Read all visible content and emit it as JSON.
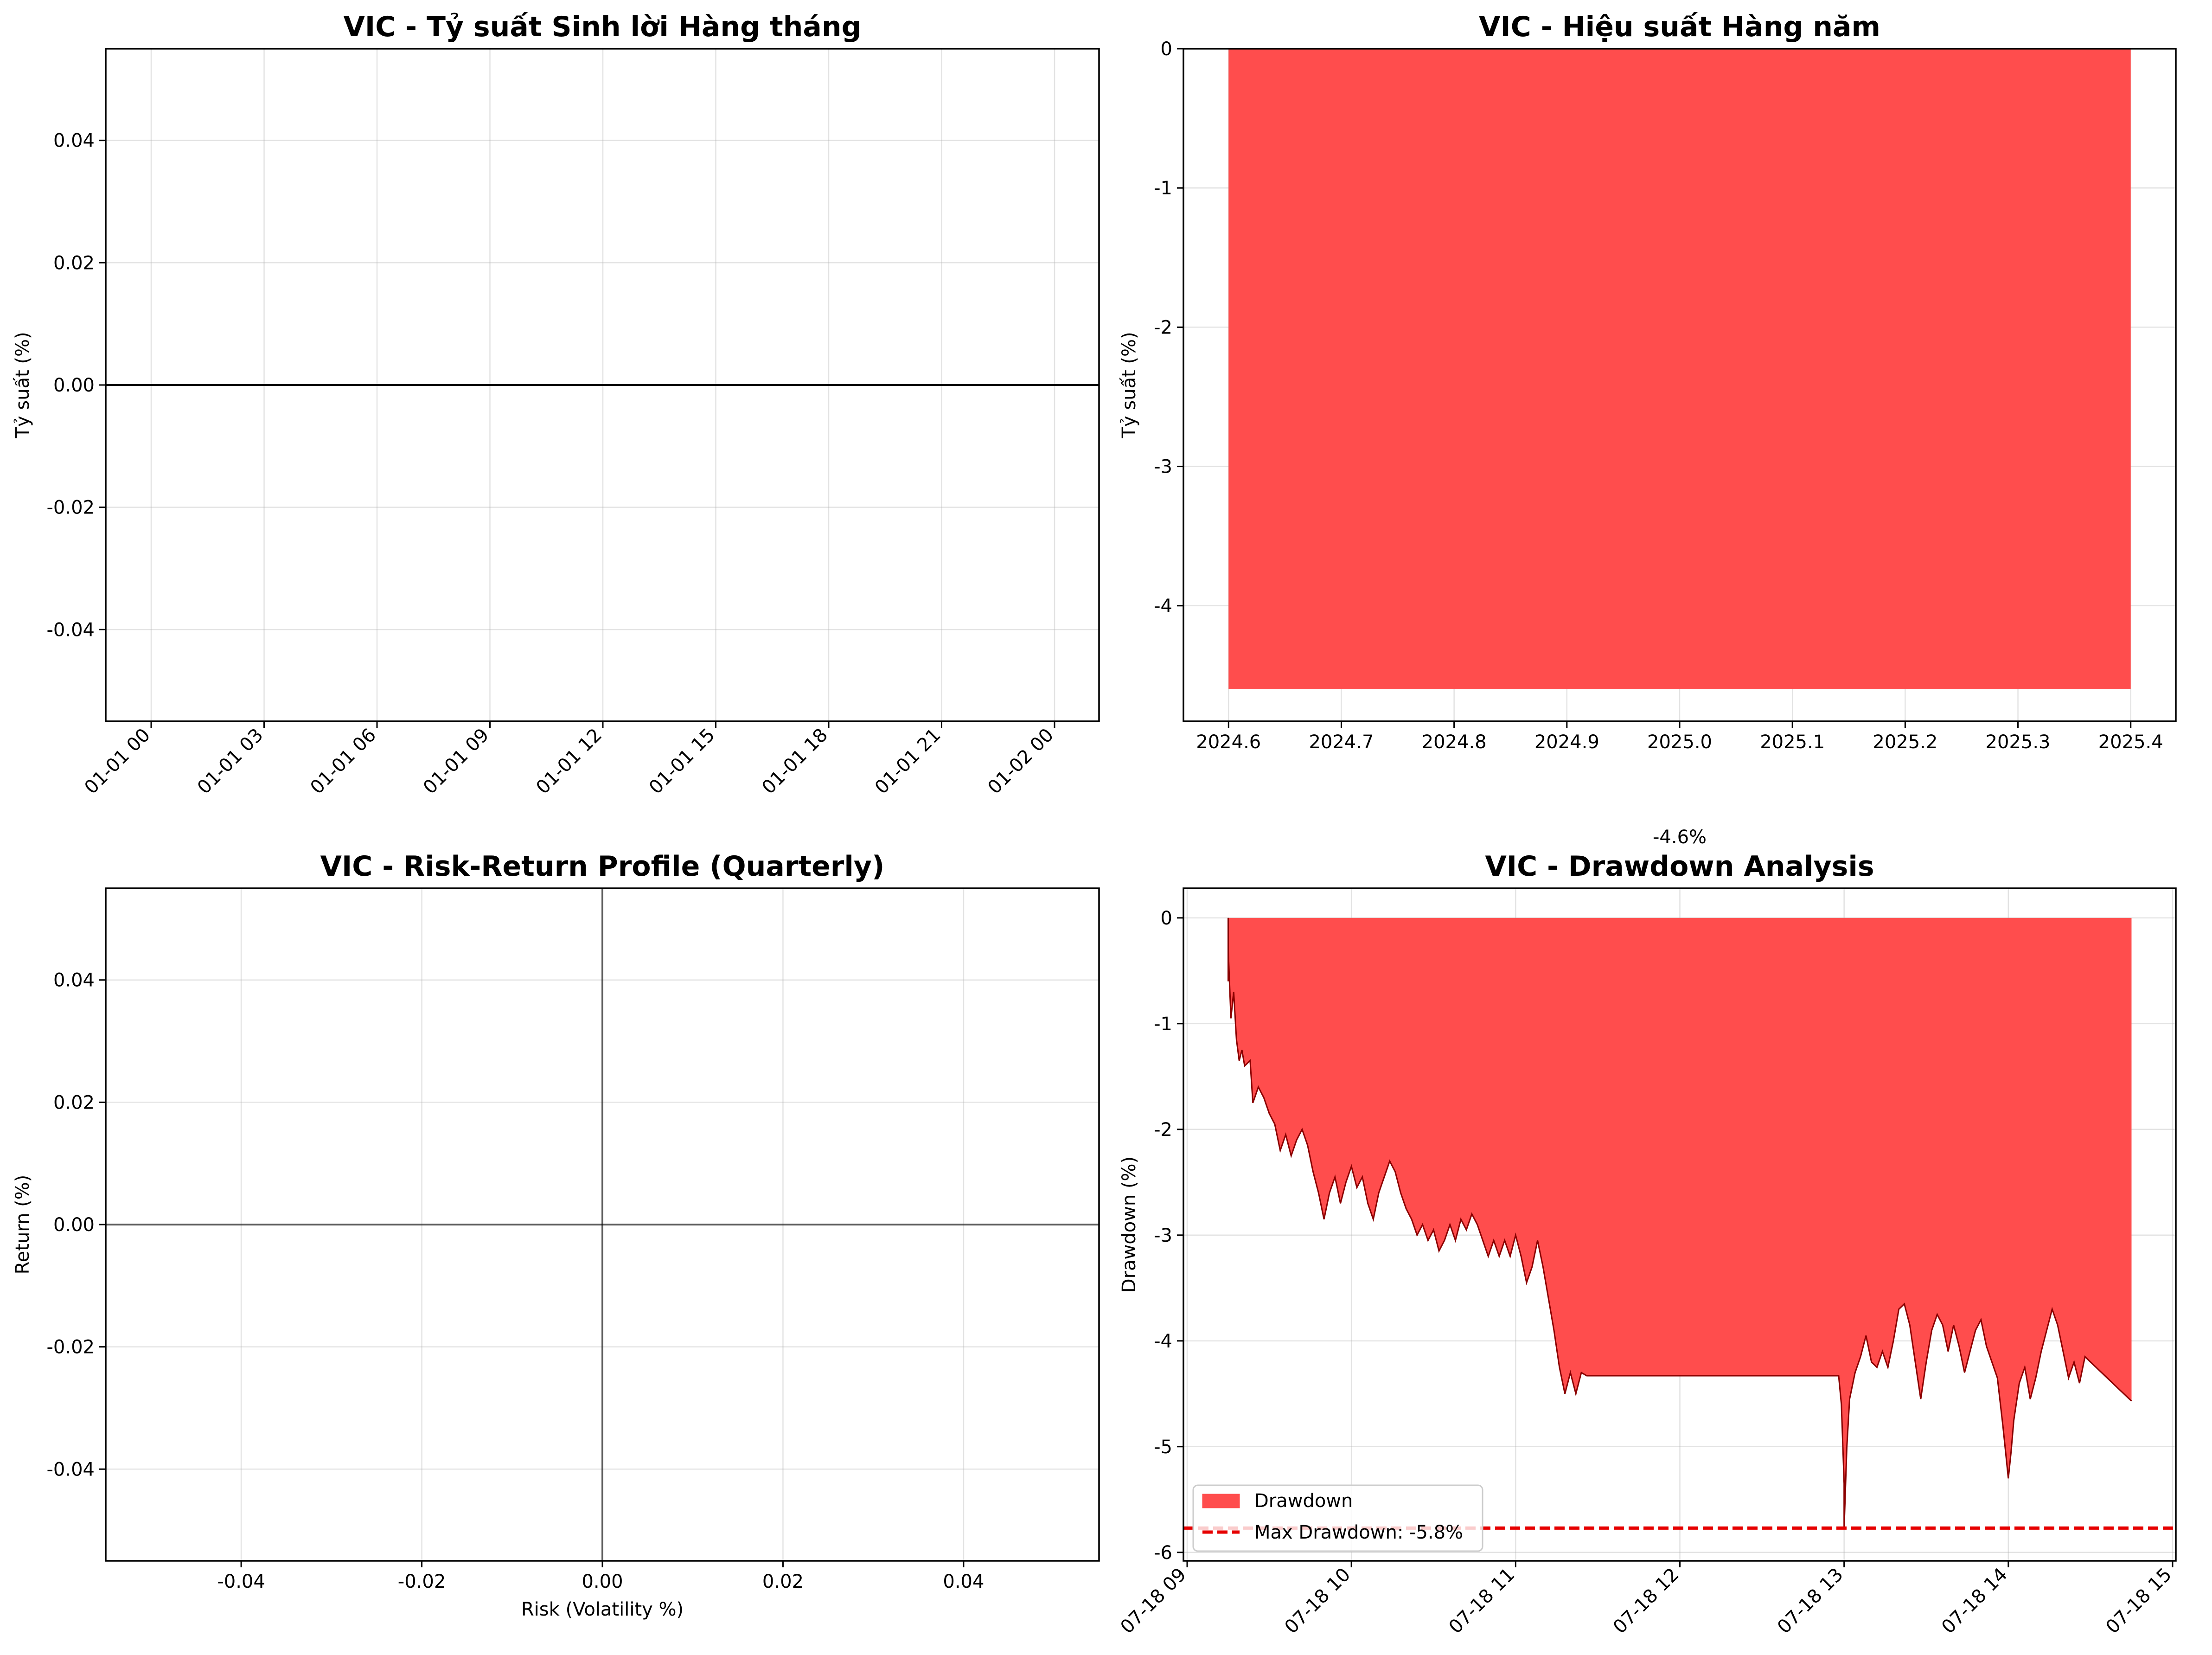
{
  "colors": {
    "drawdown_fill": "#ff4d4d",
    "drawdown_line": "#8b0000",
    "bar_fill": "#ff4d4d",
    "max_dd_line": "#e60000"
  },
  "chart_data": [
    {
      "id": "monthly",
      "type": "line",
      "title": "VIC - Tỷ suất Sinh lời Hàng tháng",
      "xlabel": "",
      "ylabel": "Tỷ suất (%)",
      "xticks": [
        "01-01 00",
        "01-01 03",
        "01-01 06",
        "01-01 09",
        "01-01 12",
        "01-01 15",
        "01-01 18",
        "01-01 21",
        "01-02 00"
      ],
      "yticks": [
        "0.04",
        "0.02",
        "0.00",
        "-0.02",
        "-0.04"
      ],
      "ylim": [
        -0.055,
        0.055
      ],
      "hline": 0,
      "grid": true,
      "series": []
    },
    {
      "id": "annual",
      "type": "bar",
      "title": "VIC - Hiệu suất Hàng năm",
      "xlabel": "",
      "ylabel": "Tỷ suất (%)",
      "xticks": [
        "2024.6",
        "2024.7",
        "2024.8",
        "2024.9",
        "2025.0",
        "2025.1",
        "2025.2",
        "2025.3",
        "2025.4"
      ],
      "yticks": [
        "0",
        "-1",
        "-2",
        "-3",
        "-4"
      ],
      "xlim": [
        2024.56,
        2025.44
      ],
      "ylim": [
        -4.83,
        0
      ],
      "categories": [
        2025
      ],
      "values": [
        -4.6
      ],
      "bar_width": 0.8,
      "bar_label": "-4.6%",
      "grid": true
    },
    {
      "id": "riskreturn",
      "type": "scatter",
      "title": "VIC - Risk-Return Profile (Quarterly)",
      "xlabel": "Risk (Volatility %)",
      "ylabel": "Return (%)",
      "xticks": [
        "-0.04",
        "-0.02",
        "0.00",
        "0.02",
        "0.04"
      ],
      "yticks": [
        "0.04",
        "0.02",
        "0.00",
        "-0.02",
        "-0.04"
      ],
      "xlim": [
        -0.055,
        0.055
      ],
      "ylim": [
        -0.055,
        0.055
      ],
      "hline": 0,
      "vline": 0,
      "grid": true,
      "points": []
    },
    {
      "id": "drawdown",
      "type": "area",
      "title": "VIC - Drawdown Analysis",
      "xlabel": "",
      "ylabel": "Drawdown (%)",
      "xticks": [
        "07-18 09",
        "07-18 10",
        "07-18 11",
        "07-18 12",
        "07-18 13",
        "07-18 14",
        "07-18 15"
      ],
      "yticks": [
        "0",
        "-1",
        "-2",
        "-3",
        "-4",
        "-5",
        "-6"
      ],
      "xlim": [
        "07-18 09:00",
        "07-18 15:00"
      ],
      "ylim": [
        -6.08,
        0.28
      ],
      "legend": {
        "position": "lower-left",
        "entries": [
          "Drawdown",
          "Max Drawdown: -5.8%"
        ]
      },
      "max_drawdown": -5.77,
      "grid": true,
      "series": [
        {
          "name": "Drawdown",
          "points": [
            [
              "07-18 09:15",
              0
            ],
            [
              "07-18 09:15",
              -0.6
            ],
            [
              "07-18 09:15",
              -0.3
            ],
            [
              "07-18 09:16",
              -0.95
            ],
            [
              "07-18 09:17",
              -0.7
            ],
            [
              "07-18 09:18",
              -1.15
            ],
            [
              "07-18 09:19",
              -1.35
            ],
            [
              "07-18 09:20",
              -1.25
            ],
            [
              "07-18 09:21",
              -1.4
            ],
            [
              "07-18 09:23",
              -1.35
            ],
            [
              "07-18 09:24",
              -1.75
            ],
            [
              "07-18 09:26",
              -1.6
            ],
            [
              "07-18 09:28",
              -1.7
            ],
            [
              "07-18 09:30",
              -1.85
            ],
            [
              "07-18 09:32",
              -1.95
            ],
            [
              "07-18 09:34",
              -2.2
            ],
            [
              "07-18 09:36",
              -2.05
            ],
            [
              "07-18 09:38",
              -2.25
            ],
            [
              "07-18 09:40",
              -2.1
            ],
            [
              "07-18 09:42",
              -2.0
            ],
            [
              "07-18 09:44",
              -2.15
            ],
            [
              "07-18 09:46",
              -2.4
            ],
            [
              "07-18 09:48",
              -2.6
            ],
            [
              "07-18 09:50",
              -2.85
            ],
            [
              "07-18 09:52",
              -2.6
            ],
            [
              "07-18 09:54",
              -2.45
            ],
            [
              "07-18 09:56",
              -2.7
            ],
            [
              "07-18 09:58",
              -2.5
            ],
            [
              "07-18 10:00",
              -2.35
            ],
            [
              "07-18 10:02",
              -2.55
            ],
            [
              "07-18 10:04",
              -2.45
            ],
            [
              "07-18 10:06",
              -2.7
            ],
            [
              "07-18 10:08",
              -2.85
            ],
            [
              "07-18 10:10",
              -2.6
            ],
            [
              "07-18 10:12",
              -2.45
            ],
            [
              "07-18 10:14",
              -2.3
            ],
            [
              "07-18 10:16",
              -2.4
            ],
            [
              "07-18 10:18",
              -2.6
            ],
            [
              "07-18 10:20",
              -2.75
            ],
            [
              "07-18 10:22",
              -2.85
            ],
            [
              "07-18 10:24",
              -3.0
            ],
            [
              "07-18 10:26",
              -2.9
            ],
            [
              "07-18 10:28",
              -3.05
            ],
            [
              "07-18 10:30",
              -2.95
            ],
            [
              "07-18 10:32",
              -3.15
            ],
            [
              "07-18 10:34",
              -3.05
            ],
            [
              "07-18 10:36",
              -2.9
            ],
            [
              "07-18 10:38",
              -3.05
            ],
            [
              "07-18 10:40",
              -2.85
            ],
            [
              "07-18 10:42",
              -2.95
            ],
            [
              "07-18 10:44",
              -2.8
            ],
            [
              "07-18 10:46",
              -2.9
            ],
            [
              "07-18 10:48",
              -3.05
            ],
            [
              "07-18 10:50",
              -3.2
            ],
            [
              "07-18 10:52",
              -3.05
            ],
            [
              "07-18 10:54",
              -3.2
            ],
            [
              "07-18 10:56",
              -3.05
            ],
            [
              "07-18 10:58",
              -3.2
            ],
            [
              "07-18 11:00",
              -3.0
            ],
            [
              "07-18 11:02",
              -3.2
            ],
            [
              "07-18 11:04",
              -3.45
            ],
            [
              "07-18 11:06",
              -3.3
            ],
            [
              "07-18 11:08",
              -3.05
            ],
            [
              "07-18 11:10",
              -3.3
            ],
            [
              "07-18 11:12",
              -3.6
            ],
            [
              "07-18 11:14",
              -3.9
            ],
            [
              "07-18 11:16",
              -4.25
            ],
            [
              "07-18 11:18",
              -4.5
            ],
            [
              "07-18 11:20",
              -4.3
            ],
            [
              "07-18 11:22",
              -4.5
            ],
            [
              "07-18 11:24",
              -4.3
            ],
            [
              "07-18 11:26",
              -4.33
            ],
            [
              "07-18 11:30",
              -4.33
            ],
            [
              "07-18 12:58",
              -4.33
            ],
            [
              "07-18 12:59",
              -4.6
            ],
            [
              "07-18 13:00",
              -5.35
            ],
            [
              "07-18 13:00",
              -5.77
            ],
            [
              "07-18 13:01",
              -5.0
            ],
            [
              "07-18 13:02",
              -4.55
            ],
            [
              "07-18 13:04",
              -4.3
            ],
            [
              "07-18 13:06",
              -4.15
            ],
            [
              "07-18 13:08",
              -3.95
            ],
            [
              "07-18 13:10",
              -4.2
            ],
            [
              "07-18 13:12",
              -4.25
            ],
            [
              "07-18 13:14",
              -4.1
            ],
            [
              "07-18 13:16",
              -4.25
            ],
            [
              "07-18 13:18",
              -4.0
            ],
            [
              "07-18 13:20",
              -3.7
            ],
            [
              "07-18 13:22",
              -3.65
            ],
            [
              "07-18 13:24",
              -3.85
            ],
            [
              "07-18 13:26",
              -4.2
            ],
            [
              "07-18 13:28",
              -4.55
            ],
            [
              "07-18 13:30",
              -4.2
            ],
            [
              "07-18 13:32",
              -3.9
            ],
            [
              "07-18 13:34",
              -3.75
            ],
            [
              "07-18 13:36",
              -3.85
            ],
            [
              "07-18 13:38",
              -4.1
            ],
            [
              "07-18 13:40",
              -3.85
            ],
            [
              "07-18 13:42",
              -4.05
            ],
            [
              "07-18 13:44",
              -4.3
            ],
            [
              "07-18 13:46",
              -4.1
            ],
            [
              "07-18 13:48",
              -3.9
            ],
            [
              "07-18 13:50",
              -3.8
            ],
            [
              "07-18 13:52",
              -4.05
            ],
            [
              "07-18 13:54",
              -4.2
            ],
            [
              "07-18 13:56",
              -4.35
            ],
            [
              "07-18 13:58",
              -4.8
            ],
            [
              "07-18 14:00",
              -5.3
            ],
            [
              "07-18 14:01",
              -5.05
            ],
            [
              "07-18 14:02",
              -4.75
            ],
            [
              "07-18 14:04",
              -4.4
            ],
            [
              "07-18 14:06",
              -4.25
            ],
            [
              "07-18 14:08",
              -4.55
            ],
            [
              "07-18 14:10",
              -4.35
            ],
            [
              "07-18 14:12",
              -4.1
            ],
            [
              "07-18 14:14",
              -3.9
            ],
            [
              "07-18 14:16",
              -3.7
            ],
            [
              "07-18 14:18",
              -3.85
            ],
            [
              "07-18 14:20",
              -4.1
            ],
            [
              "07-18 14:22",
              -4.35
            ],
            [
              "07-18 14:24",
              -4.2
            ],
            [
              "07-18 14:26",
              -4.4
            ],
            [
              "07-18 14:28",
              -4.15
            ],
            [
              "07-18 14:45",
              -4.57
            ]
          ]
        },
        {
          "name": "Max Drawdown: -5.8%",
          "hline": -5.77
        }
      ]
    }
  ]
}
